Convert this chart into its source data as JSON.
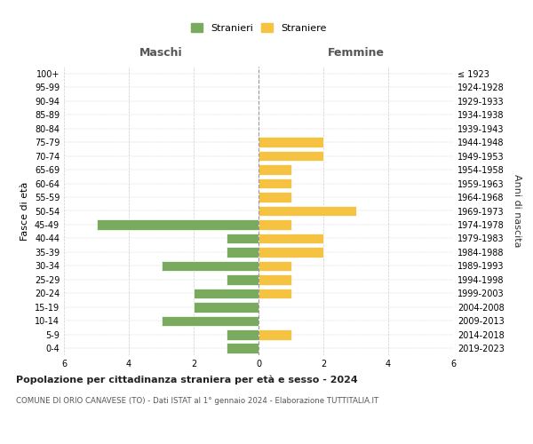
{
  "age_groups": [
    "100+",
    "95-99",
    "90-94",
    "85-89",
    "80-84",
    "75-79",
    "70-74",
    "65-69",
    "60-64",
    "55-59",
    "50-54",
    "45-49",
    "40-44",
    "35-39",
    "30-34",
    "25-29",
    "20-24",
    "15-19",
    "10-14",
    "5-9",
    "0-4"
  ],
  "birth_years": [
    "≤ 1923",
    "1924-1928",
    "1929-1933",
    "1934-1938",
    "1939-1943",
    "1944-1948",
    "1949-1953",
    "1954-1958",
    "1959-1963",
    "1964-1968",
    "1969-1973",
    "1974-1978",
    "1979-1983",
    "1984-1988",
    "1989-1993",
    "1994-1998",
    "1999-2003",
    "2004-2008",
    "2009-2013",
    "2014-2018",
    "2019-2023"
  ],
  "males": [
    0,
    0,
    0,
    0,
    0,
    0,
    0,
    0,
    0,
    0,
    0,
    5,
    1,
    1,
    3,
    1,
    2,
    2,
    3,
    1,
    1
  ],
  "females": [
    0,
    0,
    0,
    0,
    0,
    2,
    2,
    1,
    1,
    1,
    3,
    1,
    2,
    2,
    1,
    1,
    1,
    0,
    0,
    1,
    0
  ],
  "male_color": "#7aaa5d",
  "female_color": "#f5c242",
  "grid_color": "#cccccc",
  "title": "Popolazione per cittadinanza straniera per età e sesso - 2024",
  "subtitle": "COMUNE DI ORIO CANAVESE (TO) - Dati ISTAT al 1° gennaio 2024 - Elaborazione TUTTITALIA.IT",
  "legend_male": "Stranieri",
  "legend_female": "Straniere",
  "xlim": 6,
  "xlabel_left": "Maschi",
  "xlabel_right": "Femmine",
  "ylabel_left": "Fasce di età",
  "ylabel_right": "Anni di nascita",
  "bg_color": "#ffffff"
}
